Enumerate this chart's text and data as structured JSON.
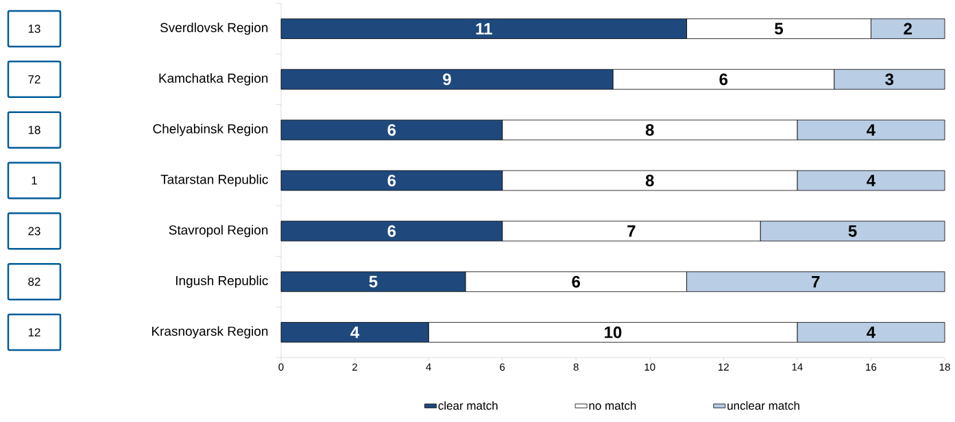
{
  "chart_data": {
    "type": "bar",
    "orientation": "horizontal",
    "stacked": true,
    "data_labels": true,
    "legend": "bottom",
    "grid": false,
    "categories": [
      "Sverdlovsk Region",
      "Kamchatka Region",
      "Chelyabinsk Region",
      "Tatarstan Republic",
      "Stavropol Region",
      "Ingush Republic",
      "Krasnoyarsk Region"
    ],
    "series": [
      {
        "name": "clear match",
        "color": "#1f497d",
        "values": [
          11,
          9,
          6,
          6,
          6,
          5,
          4
        ]
      },
      {
        "name": "no match",
        "color": "#ffffff",
        "values": [
          5,
          6,
          8,
          8,
          7,
          6,
          10
        ]
      },
      {
        "name": "unclear match",
        "color": "#b9cde5",
        "values": [
          2,
          3,
          4,
          4,
          5,
          7,
          4
        ]
      }
    ],
    "xlim": [
      0,
      18
    ],
    "xticks": [
      0,
      2,
      4,
      6,
      8,
      10,
      12,
      14,
      16,
      18
    ],
    "annotations": [
      "13",
      "72",
      "18",
      "1",
      "23",
      "82",
      "12"
    ]
  }
}
